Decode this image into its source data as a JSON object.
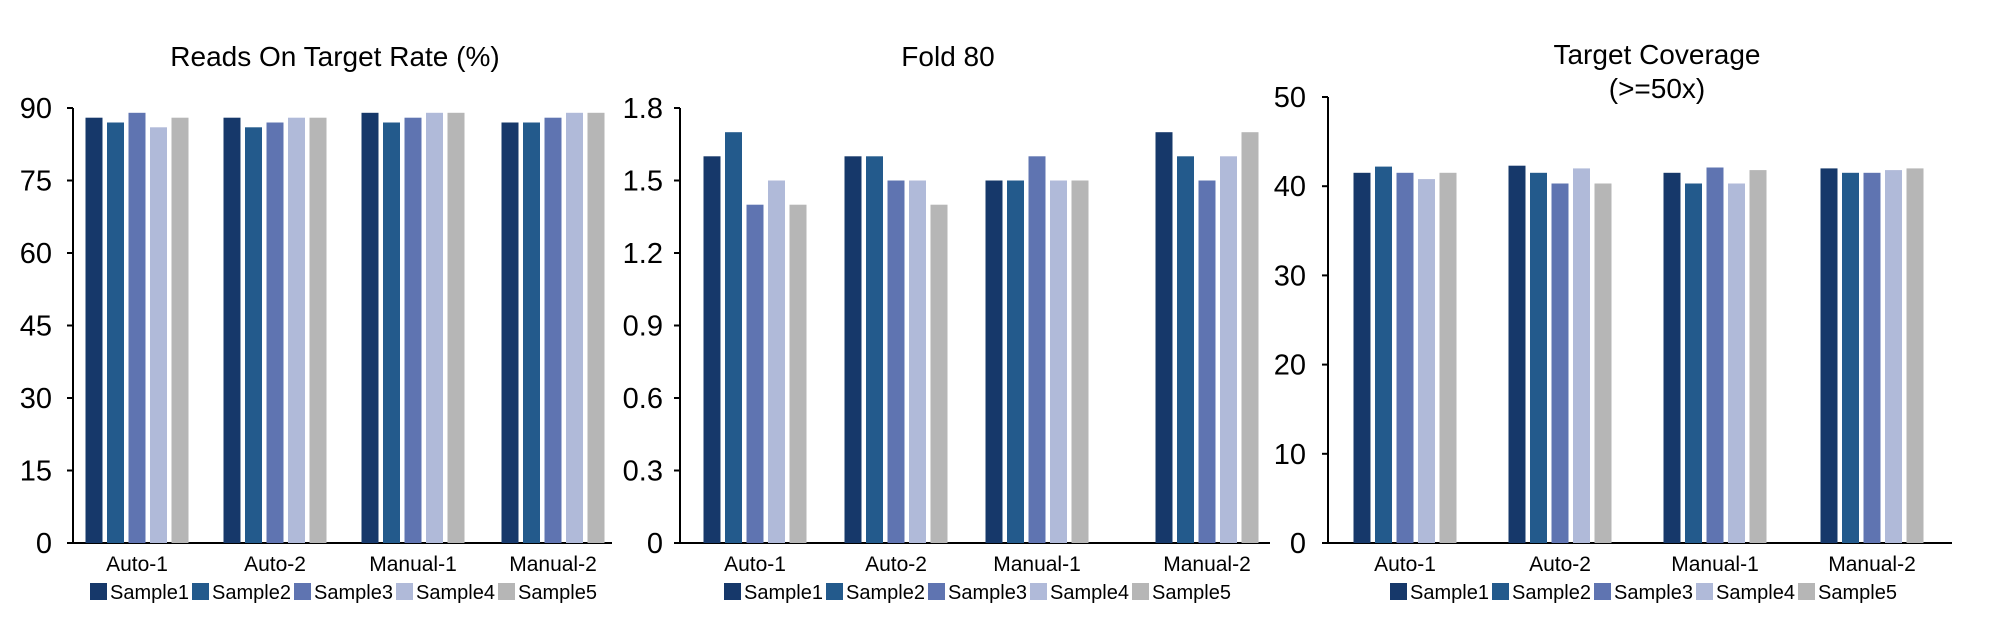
{
  "colors": {
    "Sample1": "#16386a",
    "Sample2": "#235a8c",
    "Sample3": "#5f74b1",
    "Sample4": "#b0bad9",
    "Sample5": "#b6b6b6"
  },
  "chart_data": [
    {
      "type": "bar",
      "title": [
        "Reads On Target Rate (%)"
      ],
      "categories": [
        "Auto-1",
        "Auto-2",
        "Manual-1",
        "Manual-2"
      ],
      "yticks": [
        "0",
        "15",
        "30",
        "45",
        "60",
        "75",
        "90"
      ],
      "ylim": [
        0,
        90
      ],
      "grid": false,
      "legend_position": "bottom",
      "series": [
        {
          "name": "Sample1",
          "values": [
            88,
            88,
            89,
            87
          ]
        },
        {
          "name": "Sample2",
          "values": [
            87,
            86,
            87,
            87
          ]
        },
        {
          "name": "Sample3",
          "values": [
            89,
            87,
            88,
            88
          ]
        },
        {
          "name": "Sample4",
          "values": [
            86,
            88,
            89,
            89
          ]
        },
        {
          "name": "Sample5",
          "values": [
            88,
            88,
            89,
            89
          ]
        }
      ]
    },
    {
      "type": "bar",
      "title": [
        "Fold 80"
      ],
      "categories": [
        "Auto-1",
        "Auto-2",
        "Manual-1",
        "Manual-2"
      ],
      "yticks": [
        "0",
        "0.3",
        "0.6",
        "0.9",
        "1.2",
        "1.5",
        "1.8"
      ],
      "ylim": [
        0,
        1.8
      ],
      "grid": false,
      "legend_position": "bottom",
      "series": [
        {
          "name": "Sample1",
          "values": [
            1.6,
            1.6,
            1.5,
            1.7
          ]
        },
        {
          "name": "Sample2",
          "values": [
            1.7,
            1.6,
            1.5,
            1.6
          ]
        },
        {
          "name": "Sample3",
          "values": [
            1.4,
            1.5,
            1.6,
            1.5
          ]
        },
        {
          "name": "Sample4",
          "values": [
            1.5,
            1.5,
            1.5,
            1.6
          ]
        },
        {
          "name": "Sample5",
          "values": [
            1.4,
            1.4,
            1.5,
            1.7
          ]
        }
      ]
    },
    {
      "type": "bar",
      "title": [
        "Target Coverage",
        "(>=50x)"
      ],
      "categories": [
        "Auto-1",
        "Auto-2",
        "Manual-1",
        "Manual-2"
      ],
      "yticks": [
        "0",
        "10",
        "20",
        "30",
        "40",
        "50"
      ],
      "ylim": [
        0,
        50
      ],
      "grid": false,
      "legend_position": "bottom",
      "series": [
        {
          "name": "Sample1",
          "values": [
            41.5,
            42.3,
            41.5,
            42
          ]
        },
        {
          "name": "Sample2",
          "values": [
            42.2,
            41.5,
            40.3,
            41.5
          ]
        },
        {
          "name": "Sample3",
          "values": [
            41.5,
            40.3,
            42.1,
            41.5
          ]
        },
        {
          "name": "Sample4",
          "values": [
            40.8,
            42,
            40.3,
            41.8
          ]
        },
        {
          "name": "Sample5",
          "values": [
            41.5,
            40.3,
            41.8,
            42
          ]
        }
      ]
    }
  ]
}
